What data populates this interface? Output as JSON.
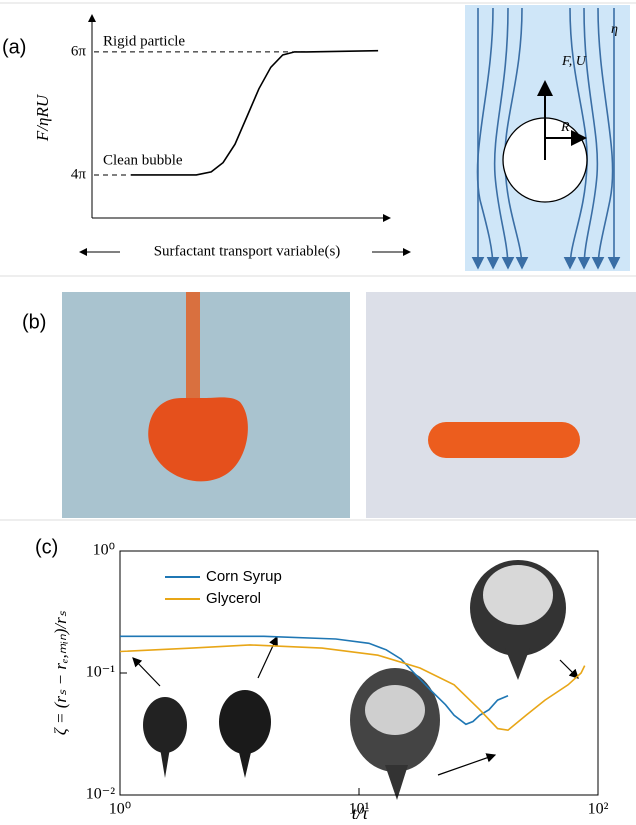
{
  "figure": {
    "panel_labels": [
      "(a)",
      "(b)",
      "(c)"
    ]
  },
  "diagram": {
    "labels": [
      "F, U",
      "R",
      "η"
    ]
  },
  "chart_data": [
    {
      "type": "line",
      "ylabel": "F/ηRU",
      "xlabel": "Surfactant transport variable(s)",
      "annotations": [
        "Rigid particle",
        "Clean bubble"
      ],
      "x": [
        1.3,
        3.5,
        4.0,
        4.4,
        4.8,
        5.2,
        5.6,
        6.0,
        6.4,
        6.8,
        7.2,
        9.6
      ],
      "values": [
        4.0,
        4.0,
        4.05,
        4.2,
        4.5,
        4.95,
        5.4,
        5.75,
        5.95,
        6.0,
        6.0,
        6.02
      ],
      "color": "#000000",
      "xlim": [
        0,
        10
      ],
      "ylim": [
        3.3,
        6.6
      ],
      "yticks": [
        {
          "value": 4,
          "label": "4π"
        },
        {
          "value": 6,
          "label": "6π"
        }
      ]
    },
    {
      "type": "line",
      "xlabel": "t/τ",
      "ylabel": "ζ = (rₛ − rₑ,ₘᵢₙ)/rₛ",
      "xscale": "log",
      "yscale": "log",
      "xlim": [
        1,
        100
      ],
      "ylim": [
        0.01,
        1
      ],
      "xticks": [
        {
          "value": 1,
          "label": "10⁰"
        },
        {
          "value": 10,
          "label": "10¹"
        },
        {
          "value": 100,
          "label": "10²"
        }
      ],
      "yticks": [
        {
          "value": 0.01,
          "label": "10⁻²"
        },
        {
          "value": 0.1,
          "label": "10⁻¹"
        },
        {
          "value": 1,
          "label": "10⁰"
        }
      ],
      "series": [
        {
          "name": "Corn Syrup",
          "color": "#1f77b4",
          "x": [
            1,
            2,
            4,
            8,
            11,
            13,
            15,
            17,
            20,
            23,
            25,
            28,
            30,
            32,
            35,
            38,
            42
          ],
          "values": [
            0.2,
            0.2,
            0.2,
            0.19,
            0.175,
            0.155,
            0.13,
            0.1,
            0.072,
            0.055,
            0.045,
            0.038,
            0.04,
            0.045,
            0.05,
            0.06,
            0.065
          ]
        },
        {
          "name": "Glycerol",
          "color": "#e8a617",
          "x": [
            1,
            2,
            3.5,
            7,
            12,
            18,
            25,
            32,
            38,
            42,
            50,
            60,
            75,
            85,
            88
          ],
          "values": [
            0.15,
            0.16,
            0.17,
            0.16,
            0.14,
            0.11,
            0.08,
            0.05,
            0.035,
            0.034,
            0.045,
            0.06,
            0.08,
            0.1,
            0.115
          ]
        }
      ]
    }
  ]
}
